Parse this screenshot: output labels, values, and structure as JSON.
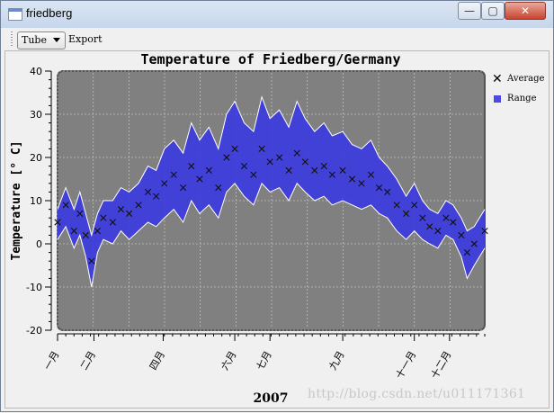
{
  "window": {
    "title": "friedberg"
  },
  "titlebar_buttons": {
    "minimize": "—",
    "maximize": "▢",
    "close": "✕"
  },
  "toolbar": {
    "combo_value": "Tube",
    "export_label": "Export"
  },
  "colors": {
    "plot_bg": "#808080",
    "range_fill": "#3a3ae0",
    "range_edge": "#ffffff",
    "grid": "#bdbdbd"
  },
  "chart_data": {
    "type": "area",
    "title": "Temperature of Friedberg/Germany",
    "ylabel": "Temperature [° C]",
    "xlabel": "2007",
    "ylim": [
      -20,
      40
    ],
    "yticks": [
      -20,
      -10,
      0,
      10,
      20,
      30,
      40
    ],
    "xlim": [
      1,
      365
    ],
    "xtick_labels": [
      "一月",
      "二月",
      "四月",
      "六月",
      "七月",
      "九月",
      "十一月",
      "十二月"
    ],
    "xtick_days": [
      1,
      32,
      91,
      152,
      182,
      244,
      305,
      335
    ],
    "grid": true,
    "legend_position": "right",
    "series": [
      {
        "name": "Average",
        "points": [
          [
            1,
            5
          ],
          [
            8,
            9
          ],
          [
            15,
            3
          ],
          [
            20,
            7
          ],
          [
            25,
            2
          ],
          [
            30,
            -4
          ],
          [
            35,
            3
          ],
          [
            40,
            6
          ],
          [
            48,
            5
          ],
          [
            55,
            8
          ],
          [
            62,
            7
          ],
          [
            70,
            9
          ],
          [
            78,
            12
          ],
          [
            85,
            11
          ],
          [
            92,
            14
          ],
          [
            100,
            16
          ],
          [
            108,
            13
          ],
          [
            115,
            18
          ],
          [
            122,
            15
          ],
          [
            130,
            17
          ],
          [
            138,
            13
          ],
          [
            145,
            20
          ],
          [
            152,
            22
          ],
          [
            160,
            18
          ],
          [
            168,
            16
          ],
          [
            175,
            22
          ],
          [
            182,
            19
          ],
          [
            190,
            20
          ],
          [
            198,
            17
          ],
          [
            205,
            21
          ],
          [
            212,
            19
          ],
          [
            220,
            17
          ],
          [
            228,
            18
          ],
          [
            235,
            16
          ],
          [
            244,
            17
          ],
          [
            252,
            15
          ],
          [
            260,
            14
          ],
          [
            268,
            16
          ],
          [
            275,
            13
          ],
          [
            282,
            12
          ],
          [
            290,
            9
          ],
          [
            298,
            7
          ],
          [
            305,
            9
          ],
          [
            312,
            6
          ],
          [
            318,
            4
          ],
          [
            325,
            3
          ],
          [
            332,
            6
          ],
          [
            338,
            5
          ],
          [
            345,
            2
          ],
          [
            350,
            -2
          ],
          [
            356,
            0
          ],
          [
            365,
            3
          ]
        ]
      },
      {
        "name": "Range",
        "min": [
          [
            1,
            1
          ],
          [
            8,
            4
          ],
          [
            15,
            -1
          ],
          [
            20,
            2
          ],
          [
            25,
            -3
          ],
          [
            30,
            -10
          ],
          [
            35,
            -2
          ],
          [
            40,
            1
          ],
          [
            48,
            0
          ],
          [
            55,
            3
          ],
          [
            62,
            1
          ],
          [
            70,
            3
          ],
          [
            78,
            5
          ],
          [
            85,
            4
          ],
          [
            92,
            6
          ],
          [
            100,
            8
          ],
          [
            108,
            5
          ],
          [
            115,
            10
          ],
          [
            122,
            7
          ],
          [
            130,
            9
          ],
          [
            138,
            6
          ],
          [
            145,
            12
          ],
          [
            152,
            14
          ],
          [
            160,
            11
          ],
          [
            168,
            9
          ],
          [
            175,
            14
          ],
          [
            182,
            12
          ],
          [
            190,
            13
          ],
          [
            198,
            10
          ],
          [
            205,
            14
          ],
          [
            212,
            12
          ],
          [
            220,
            10
          ],
          [
            228,
            11
          ],
          [
            235,
            9
          ],
          [
            244,
            10
          ],
          [
            252,
            9
          ],
          [
            260,
            8
          ],
          [
            268,
            9
          ],
          [
            275,
            7
          ],
          [
            282,
            6
          ],
          [
            290,
            3
          ],
          [
            298,
            1
          ],
          [
            305,
            3
          ],
          [
            312,
            1
          ],
          [
            318,
            0
          ],
          [
            325,
            -1
          ],
          [
            332,
            2
          ],
          [
            338,
            1
          ],
          [
            345,
            -3
          ],
          [
            350,
            -8
          ],
          [
            356,
            -5
          ],
          [
            365,
            -1
          ]
        ],
        "max": [
          [
            1,
            8
          ],
          [
            8,
            13
          ],
          [
            15,
            8
          ],
          [
            20,
            12
          ],
          [
            25,
            7
          ],
          [
            30,
            2
          ],
          [
            35,
            7
          ],
          [
            40,
            10
          ],
          [
            48,
            10
          ],
          [
            55,
            13
          ],
          [
            62,
            12
          ],
          [
            70,
            14
          ],
          [
            78,
            18
          ],
          [
            85,
            17
          ],
          [
            92,
            22
          ],
          [
            100,
            24
          ],
          [
            108,
            21
          ],
          [
            115,
            28
          ],
          [
            122,
            24
          ],
          [
            130,
            27
          ],
          [
            138,
            22
          ],
          [
            145,
            30
          ],
          [
            152,
            33
          ],
          [
            160,
            28
          ],
          [
            168,
            26
          ],
          [
            175,
            34
          ],
          [
            182,
            29
          ],
          [
            190,
            31
          ],
          [
            198,
            27
          ],
          [
            205,
            33
          ],
          [
            212,
            29
          ],
          [
            220,
            26
          ],
          [
            228,
            28
          ],
          [
            235,
            25
          ],
          [
            244,
            26
          ],
          [
            252,
            23
          ],
          [
            260,
            22
          ],
          [
            268,
            24
          ],
          [
            275,
            20
          ],
          [
            282,
            18
          ],
          [
            290,
            15
          ],
          [
            298,
            11
          ],
          [
            305,
            14
          ],
          [
            312,
            10
          ],
          [
            318,
            8
          ],
          [
            325,
            7
          ],
          [
            332,
            10
          ],
          [
            338,
            9
          ],
          [
            345,
            6
          ],
          [
            350,
            3
          ],
          [
            356,
            4
          ],
          [
            365,
            8
          ]
        ]
      }
    ]
  },
  "legend": {
    "average_label": "Average",
    "range_label": "Range"
  },
  "watermark": "http://blog.csdn.net/u011171361"
}
